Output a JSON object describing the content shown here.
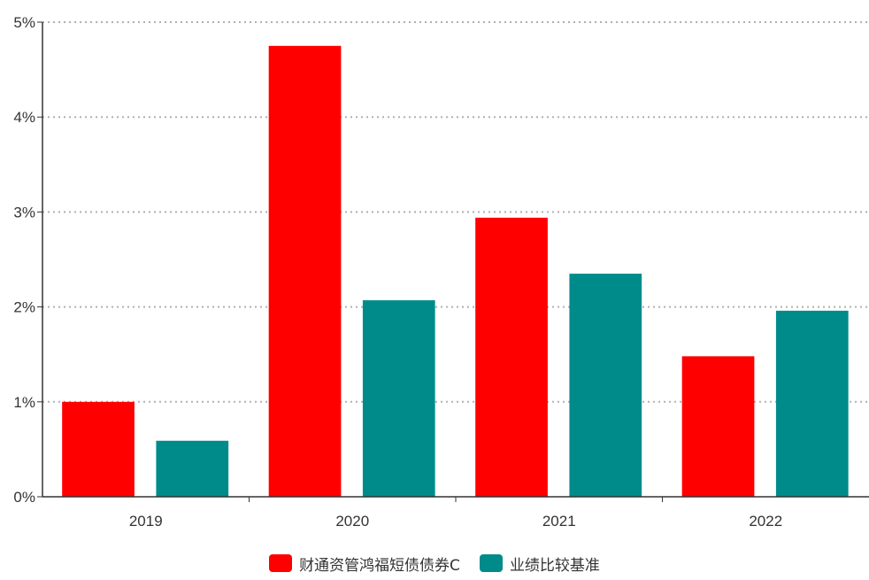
{
  "chart_data": {
    "type": "bar",
    "categories": [
      "2019",
      "2020",
      "2021",
      "2022"
    ],
    "series": [
      {
        "name": "财通资管鸿福短债债券C",
        "values": [
          1.0,
          4.75,
          2.94,
          1.48
        ],
        "color": "#ff0000"
      },
      {
        "name": "业绩比较基准",
        "values": [
          0.59,
          2.07,
          2.35,
          1.96
        ],
        "color": "#008b8b"
      }
    ],
    "y_ticks": [
      "0%",
      "1%",
      "2%",
      "3%",
      "4%",
      "5%"
    ],
    "ylim": [
      0,
      5
    ],
    "grid": true,
    "legend_position": "bottom-center",
    "title": "",
    "xlabel": "",
    "ylabel": ""
  }
}
